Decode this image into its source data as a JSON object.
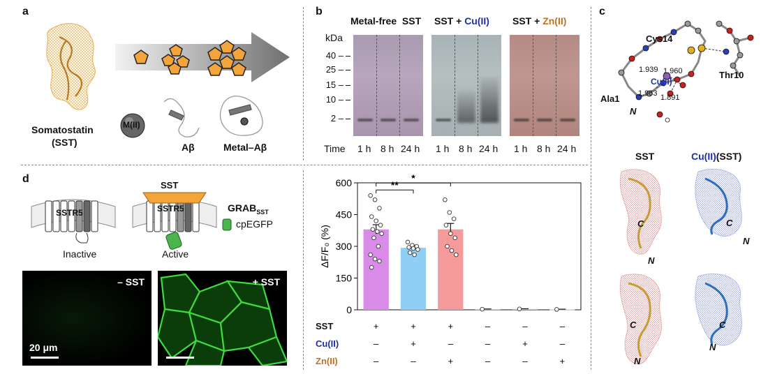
{
  "panels": {
    "a": {
      "label": "a",
      "sst_name_line1": "Somatostatin",
      "sst_name_line2": "(SST)",
      "metal_symbol": "M(II)",
      "abeta": "Aβ",
      "metal_abeta": "Metal–Aβ"
    },
    "b": {
      "label": "b",
      "groups": [
        {
          "title": "Metal-free  SST"
        },
        {
          "title_prefix": "SST + ",
          "title_metal": "Cu(II)"
        },
        {
          "title_prefix": "SST + ",
          "title_metal": "Zn(II)"
        }
      ],
      "kda_label": "kDa",
      "kda_ticks": [
        "40 –",
        "25 –",
        "15 –",
        "10 –",
        "2 –"
      ],
      "time_label": "Time",
      "times": [
        "1 h",
        "8 h",
        "24 h"
      ]
    },
    "c": {
      "label": "c",
      "atoms": {
        "cys": "Cys14",
        "thr": "Thr10",
        "ala": "Ala1",
        "n": "N",
        "cu": "Cu(II)"
      },
      "distances": [
        "1.939",
        "1.960",
        "1.963",
        "1.891"
      ],
      "col_sst": "SST",
      "col_cu_metal": "Cu(II)",
      "col_cu_rest": "(SST)",
      "c_term": "C",
      "n_term": "N"
    },
    "d": {
      "label": "d",
      "sst_tag": "SST",
      "receptor": "SSTR5",
      "grab_main": "GRAB",
      "grab_sub": "SST",
      "cpegfp": "cpEGFP",
      "inactive": "Inactive",
      "active": "Active",
      "minus_sst": "– SST",
      "plus_sst": "+ SST",
      "scale": "20 μm"
    }
  },
  "chart_data": {
    "type": "bar",
    "ylabel": "ΔF/F₀ (%)",
    "ylim": [
      0,
      600
    ],
    "yticks": [
      0,
      150,
      300,
      450,
      600
    ],
    "values": [
      380,
      293,
      380,
      3,
      4,
      2
    ],
    "errors": [
      22,
      12,
      28,
      1,
      1,
      1
    ],
    "colors": [
      "#d98be8",
      "#8fcff5",
      "#f59a9a",
      "#cccccc",
      "#cccccc",
      "#cccccc"
    ],
    "points": [
      [
        540,
        520,
        480,
        440,
        420,
        400,
        380,
        370,
        360,
        340,
        300,
        260,
        240,
        230,
        200
      ],
      [
        320,
        305,
        300,
        295,
        290,
        285,
        270,
        260
      ],
      [
        520,
        460,
        430,
        400,
        360,
        340,
        300,
        280,
        260
      ],
      [
        3
      ],
      [
        4
      ],
      [
        2
      ]
    ],
    "conditions": [
      {
        "name": "SST",
        "values": [
          "+",
          "+",
          "+",
          "–",
          "–",
          "–"
        ]
      },
      {
        "name": "Cu(II)",
        "values": [
          "–",
          "+",
          "–",
          "–",
          "+",
          "–"
        ]
      },
      {
        "name": "Zn(II)",
        "values": [
          "–",
          "–",
          "+",
          "–",
          "–",
          "+"
        ]
      }
    ],
    "significance": [
      {
        "from": 0,
        "to": 1,
        "label": "**"
      },
      {
        "from": 0,
        "to": 2,
        "label": "*"
      }
    ]
  }
}
